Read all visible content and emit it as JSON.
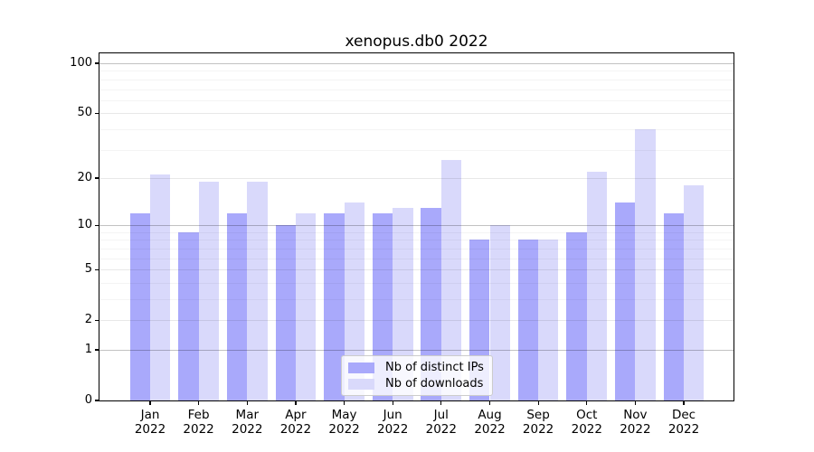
{
  "title": "xenopus.db0 2022",
  "chart_data": {
    "type": "bar",
    "title": "xenopus.db0 2022",
    "months": [
      "Jan",
      "Feb",
      "Mar",
      "Apr",
      "May",
      "Jun",
      "Jul",
      "Aug",
      "Sep",
      "Oct",
      "Nov",
      "Dec"
    ],
    "year_label": "2022",
    "series": [
      {
        "name": "Nb of distinct IPs",
        "color": "#a9a9fb",
        "values": [
          12,
          9,
          12,
          10,
          12,
          12,
          13,
          8,
          8,
          9,
          14,
          12
        ]
      },
      {
        "name": "Nb of downloads",
        "color": "#d9d9fb",
        "values": [
          21,
          19,
          19,
          12,
          14,
          13,
          26,
          10,
          8,
          22,
          40,
          18
        ]
      }
    ],
    "y_axis": {
      "scale": "log1p",
      "ticks": [
        0,
        1,
        2,
        5,
        10,
        20,
        50,
        100
      ],
      "major_gridlines": [
        1,
        10,
        100
      ],
      "mid_gridlines": [
        2,
        5,
        20,
        50
      ],
      "minor_gridlines": [
        3,
        4,
        6,
        7,
        8,
        9,
        30,
        40,
        60,
        70,
        80,
        90
      ],
      "top_value": 115
    },
    "legend": {
      "position": "lower-center"
    },
    "grid": "on"
  }
}
